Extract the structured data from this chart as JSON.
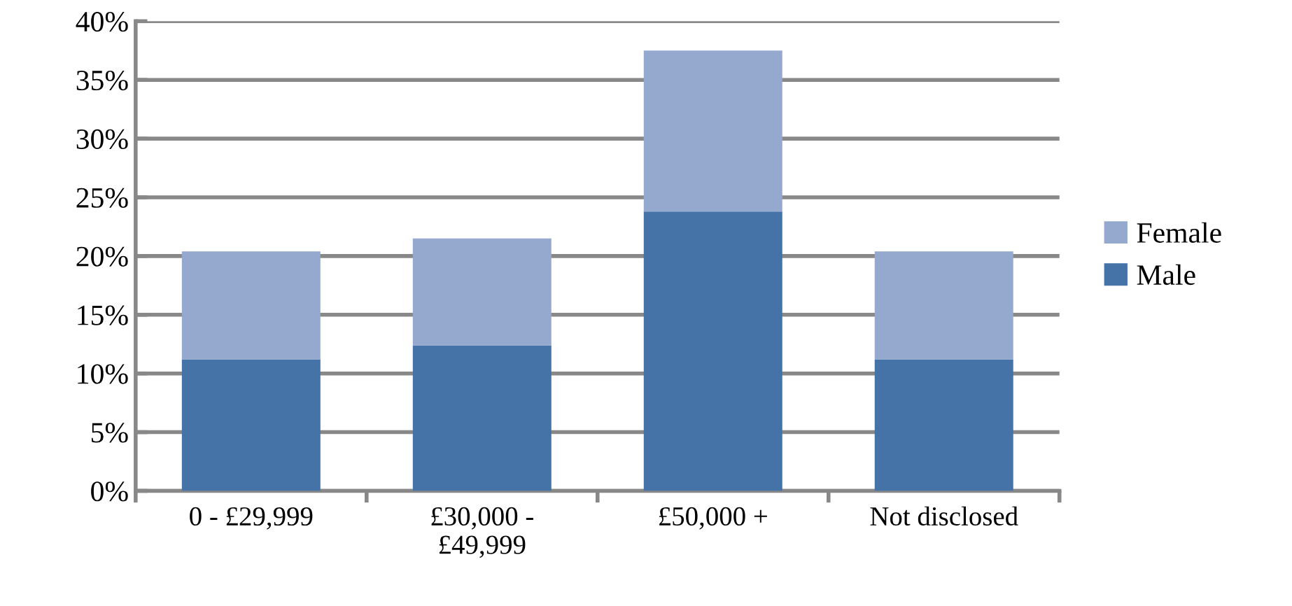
{
  "chart_data": {
    "type": "bar",
    "stacked": true,
    "categories": [
      "0 - £29,999",
      "£30,000 -\n£49,999",
      "£50,000 +",
      "Not disclosed"
    ],
    "series": [
      {
        "name": "Male",
        "color": "#4572a7",
        "values": [
          11.2,
          12.4,
          23.8,
          11.2
        ]
      },
      {
        "name": "Female",
        "color": "#95a9cf",
        "values": [
          9.2,
          9.1,
          13.7,
          9.2
        ]
      }
    ],
    "ylim": [
      0,
      40
    ],
    "yticks": [
      {
        "value": 0,
        "label": "0%"
      },
      {
        "value": 5,
        "label": "5%"
      },
      {
        "value": 10,
        "label": "10%"
      },
      {
        "value": 15,
        "label": "15%"
      },
      {
        "value": 20,
        "label": "20%"
      },
      {
        "value": 25,
        "label": "25%"
      },
      {
        "value": 30,
        "label": "30%"
      },
      {
        "value": 35,
        "label": "35%"
      },
      {
        "value": 40,
        "label": "40%"
      }
    ],
    "grid": "y",
    "legend": "right"
  }
}
